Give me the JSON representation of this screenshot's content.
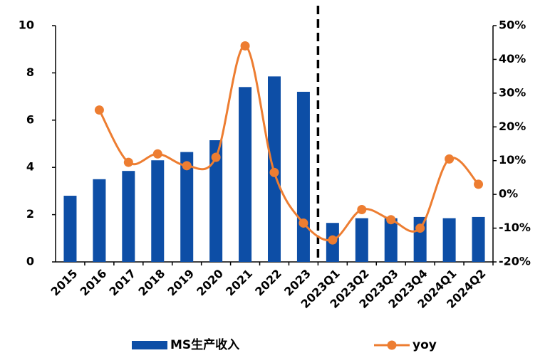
{
  "chart_data": {
    "type": "bar",
    "categories": [
      "2015",
      "2016",
      "2017",
      "2018",
      "2019",
      "2020",
      "2021",
      "2022",
      "2023",
      "2023Q1",
      "2023Q2",
      "2023Q3",
      "2023Q4",
      "2024Q1",
      "2024Q2"
    ],
    "series": [
      {
        "name": "MS生产收入",
        "type": "bar",
        "color": "#0d4ea6",
        "values": [
          2.8,
          3.5,
          3.85,
          4.3,
          4.65,
          5.15,
          7.4,
          7.85,
          7.2,
          1.65,
          1.85,
          1.85,
          1.9,
          1.85,
          1.9
        ]
      },
      {
        "name": "yoy",
        "type": "line",
        "axis": "y2",
        "color": "#ed7d31",
        "values": [
          null,
          25,
          9.5,
          12,
          8.5,
          11,
          44,
          6.5,
          -8.5,
          -13.5,
          -4.5,
          -7.5,
          -10,
          10.5,
          3
        ]
      }
    ],
    "ylim": [
      0,
      10
    ],
    "yticks": [
      0,
      2,
      4,
      6,
      8,
      10
    ],
    "y2lim": [
      -20,
      50
    ],
    "y2ticks": [
      {
        "value": -20,
        "label": "-20%"
      },
      {
        "value": -10,
        "label": "-10%"
      },
      {
        "value": 0,
        "label": "0%"
      },
      {
        "value": 10,
        "label": "10%"
      },
      {
        "value": 20,
        "label": "20%"
      },
      {
        "value": 30,
        "label": "30%"
      },
      {
        "value": 40,
        "label": "40%"
      },
      {
        "value": 50,
        "label": "50%"
      }
    ],
    "legend": "bottom"
  }
}
